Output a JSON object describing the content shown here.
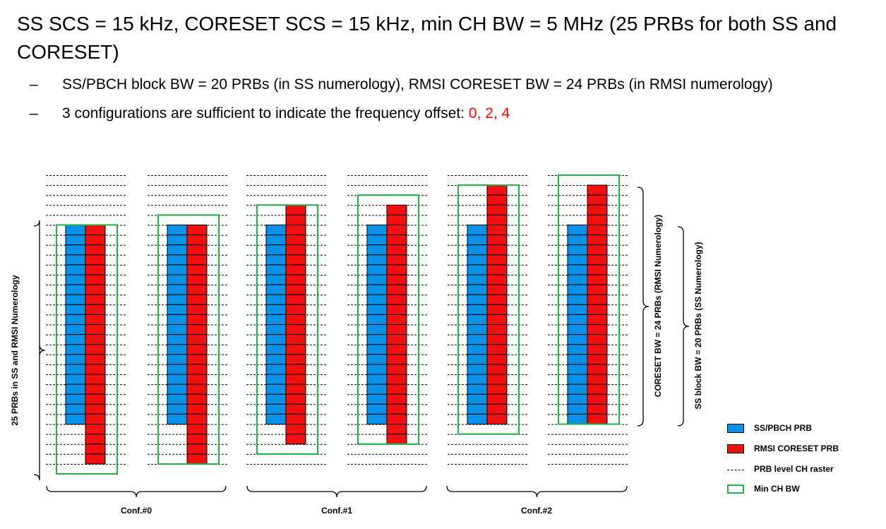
{
  "title": "SS SCS = 15 kHz, CORESET SCS = 15 kHz, min CH BW = 5 MHz (25 PRBs for both SS and CORESET)",
  "bullets": [
    {
      "dash": "–",
      "text": "SS/PBCH block BW = 20 PRBs (in SS numerology), RMSI CORESET BW = 24 PRBs (in RMSI numerology)"
    },
    {
      "dash": "–",
      "text": "3 configurations are sufficient to indicate the frequency offset: ",
      "highlight": "0, 2, 4"
    }
  ],
  "diagram": {
    "prb_raster_rows": 30,
    "ss_block_prbs": 20,
    "coreset_prbs": 24,
    "min_ch_bw_prbs": 25,
    "colors": {
      "ss": "#0a91e8",
      "coreset": "#f01010",
      "min_bw": "#22b04a",
      "raster": "#000000"
    },
    "groups": [
      {
        "label": "Conf.#0",
        "frequency_offset": 0
      },
      {
        "label": "Conf.#1",
        "frequency_offset": 2
      },
      {
        "label": "Conf.#2",
        "frequency_offset": 4
      }
    ],
    "left_brace_label": "25 PRBs in SS and RMSI Numerology",
    "right_brace_coreset_label": "CORESET BW = 24 PRBs (RMSI Numerology)",
    "right_brace_ss_label": "SS block BW = 20 PRBs (SS Numerology)"
  },
  "legend": [
    {
      "name": "ss-pbch-prb",
      "label": "SS/PBCH PRB",
      "swatch": "ss"
    },
    {
      "name": "rmsi-coreset-prb",
      "label": "RMSI CORESET PRB",
      "swatch": "coreset"
    },
    {
      "name": "prb-raster",
      "label": "PRB level CH raster",
      "swatch": "raster"
    },
    {
      "name": "min-ch-bw",
      "label": "Min CH BW",
      "swatch": "min_bw"
    }
  ]
}
